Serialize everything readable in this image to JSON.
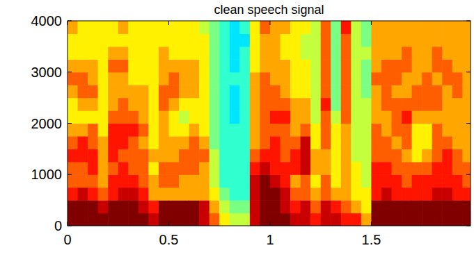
{
  "chart_data": {
    "type": "heatmap",
    "title": "clean speech signal",
    "xlim": [
      0,
      1.99
    ],
    "ylim": [
      0,
      4000
    ],
    "xticks": [
      0,
      0.5,
      1,
      1.5
    ],
    "yticks": [
      0,
      1000,
      2000,
      3000,
      4000
    ],
    "zlim": [
      0,
      9
    ],
    "x": [
      0.025,
      0.075,
      0.125,
      0.175,
      0.225,
      0.275,
      0.325,
      0.375,
      0.425,
      0.475,
      0.525,
      0.575,
      0.625,
      0.675,
      0.725,
      0.775,
      0.825,
      0.875,
      0.925,
      0.975,
      1.025,
      1.075,
      1.125,
      1.175,
      1.225,
      1.275,
      1.325,
      1.375,
      1.425,
      1.475,
      1.525,
      1.575,
      1.625,
      1.675,
      1.725,
      1.775,
      1.825,
      1.875,
      1.925,
      1.975
    ],
    "y": [
      125,
      375,
      625,
      875,
      1125,
      1375,
      1625,
      1875,
      2125,
      2375,
      2625,
      2875,
      3125,
      3375,
      3625,
      3875
    ],
    "z": [
      [
        9,
        9,
        7,
        6,
        6,
        7,
        6,
        5,
        4,
        4,
        5,
        6,
        5,
        4,
        4,
        5
      ],
      [
        9,
        9,
        8,
        6,
        6,
        7,
        7,
        5,
        4,
        5,
        6,
        6,
        5,
        4,
        4,
        4
      ],
      [
        9,
        9,
        7,
        6,
        7,
        7,
        6,
        6,
        4,
        5,
        6,
        5,
        5,
        4,
        4,
        4
      ],
      [
        9,
        8,
        6,
        5,
        5,
        5,
        5,
        4,
        4,
        4,
        4,
        4,
        4,
        4,
        4,
        4
      ],
      [
        9,
        9,
        7,
        7,
        6,
        7,
        7,
        7,
        6,
        5,
        5,
        5,
        6,
        5,
        4,
        4
      ],
      [
        9,
        9,
        8,
        7,
        7,
        6,
        7,
        7,
        6,
        6,
        5,
        5,
        6,
        5,
        4,
        5
      ],
      [
        9,
        9,
        8,
        7,
        6,
        6,
        6,
        7,
        6,
        5,
        5,
        4,
        4,
        4,
        4,
        4
      ],
      [
        9,
        8,
        7,
        6,
        6,
        6,
        5,
        6,
        5,
        5,
        5,
        4,
        4,
        4,
        4,
        4
      ],
      [
        8,
        7,
        5,
        5,
        4,
        5,
        4,
        4,
        4,
        4,
        4,
        4,
        4,
        4,
        4,
        4
      ],
      [
        9,
        9,
        5,
        6,
        6,
        5,
        5,
        5,
        5,
        6,
        6,
        5,
        5,
        5,
        4,
        4
      ],
      [
        9,
        9,
        5,
        6,
        6,
        5,
        5,
        4,
        4,
        5,
        6,
        6,
        5,
        4,
        4,
        4
      ],
      [
        9,
        9,
        5,
        5,
        6,
        6,
        5,
        4,
        3,
        4,
        5,
        5,
        5,
        4,
        4,
        4
      ],
      [
        9,
        9,
        5,
        5,
        6,
        6,
        6,
        5,
        4,
        4,
        5,
        5,
        5,
        4,
        4,
        4
      ],
      [
        8,
        8,
        5,
        5,
        5,
        6,
        5,
        4,
        4,
        4,
        4,
        4,
        4,
        4,
        4,
        3
      ],
      [
        6,
        5,
        4,
        3,
        3,
        3,
        2,
        2,
        2,
        2,
        2,
        2,
        2,
        2,
        2,
        2
      ],
      [
        4,
        3,
        2,
        1,
        1,
        1,
        1,
        1,
        1,
        1,
        1,
        1,
        1,
        1,
        1,
        1
      ],
      [
        3,
        2,
        1,
        1,
        1,
        1,
        1,
        1,
        0,
        0,
        0,
        1,
        0,
        0,
        0,
        0
      ],
      [
        3,
        2,
        1,
        1,
        1,
        1,
        1,
        1,
        1,
        1,
        1,
        1,
        1,
        1,
        0,
        1
      ],
      [
        8,
        8,
        8,
        8,
        7,
        6,
        5,
        5,
        5,
        5,
        5,
        5,
        4,
        4,
        4,
        4
      ],
      [
        9,
        9,
        9,
        9,
        8,
        7,
        6,
        6,
        6,
        6,
        6,
        6,
        5,
        5,
        5,
        6
      ],
      [
        9,
        9,
        9,
        8,
        7,
        7,
        7,
        6,
        7,
        6,
        6,
        5,
        5,
        5,
        5,
        5
      ],
      [
        9,
        8,
        8,
        7,
        7,
        6,
        6,
        6,
        7,
        6,
        5,
        5,
        5,
        4,
        4,
        5
      ],
      [
        8,
        7,
        6,
        5,
        7,
        7,
        6,
        5,
        5,
        5,
        4,
        4,
        4,
        4,
        4,
        4
      ],
      [
        8,
        8,
        6,
        6,
        8,
        8,
        8,
        6,
        5,
        5,
        4,
        4,
        4,
        3,
        3,
        4
      ],
      [
        7,
        6,
        5,
        4,
        5,
        5,
        4,
        4,
        3,
        3,
        3,
        3,
        3,
        3,
        3,
        3
      ],
      [
        8,
        8,
        6,
        6,
        5,
        5,
        6,
        6,
        6,
        7,
        6,
        6,
        6,
        6,
        6,
        6
      ],
      [
        8,
        7,
        5,
        4,
        4,
        4,
        4,
        4,
        3,
        2,
        2,
        2,
        2,
        2,
        2,
        2
      ],
      [
        7,
        6,
        5,
        5,
        5,
        5,
        5,
        5,
        6,
        6,
        6,
        6,
        6,
        6,
        6,
        7
      ],
      [
        7,
        5,
        4,
        4,
        4,
        3,
        3,
        3,
        3,
        3,
        3,
        3,
        3,
        3,
        3,
        3
      ],
      [
        5,
        4,
        4,
        3,
        3,
        3,
        3,
        3,
        3,
        3,
        2,
        2,
        2,
        3,
        2,
        2
      ],
      [
        9,
        9,
        7,
        7,
        7,
        6,
        6,
        6,
        5,
        5,
        5,
        6,
        5,
        5,
        5,
        5
      ],
      [
        9,
        9,
        8,
        7,
        7,
        6,
        6,
        5,
        5,
        6,
        6,
        6,
        6,
        5,
        5,
        5
      ],
      [
        9,
        9,
        7,
        7,
        6,
        6,
        5,
        6,
        6,
        6,
        5,
        6,
        6,
        5,
        5,
        5
      ],
      [
        9,
        9,
        7,
        6,
        6,
        5,
        6,
        6,
        7,
        6,
        5,
        5,
        6,
        6,
        5,
        5
      ],
      [
        9,
        9,
        7,
        7,
        6,
        4,
        4,
        4,
        5,
        6,
        6,
        5,
        5,
        5,
        5,
        5
      ],
      [
        9,
        9,
        7,
        7,
        6,
        5,
        4,
        4,
        5,
        6,
        6,
        6,
        5,
        5,
        5,
        5
      ],
      [
        9,
        9,
        8,
        7,
        7,
        6,
        6,
        6,
        5,
        6,
        6,
        5,
        6,
        6,
        5,
        5
      ],
      [
        9,
        9,
        8,
        7,
        7,
        7,
        6,
        5,
        5,
        5,
        5,
        6,
        6,
        5,
        5,
        5
      ],
      [
        9,
        9,
        7,
        7,
        6,
        6,
        5,
        5,
        5,
        5,
        6,
        6,
        5,
        5,
        5,
        5
      ],
      [
        9,
        9,
        7,
        6,
        6,
        5,
        5,
        5,
        5,
        5,
        5,
        5,
        5,
        5,
        5,
        5
      ]
    ]
  }
}
